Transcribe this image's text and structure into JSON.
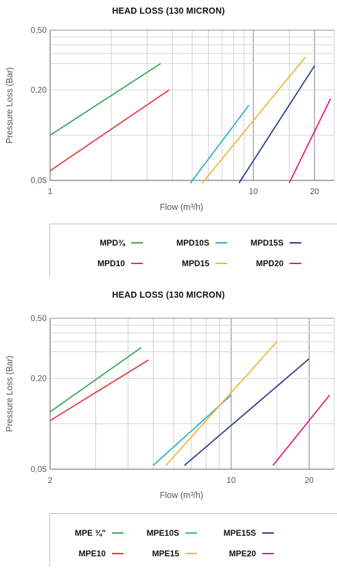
{
  "chart_data": [
    {
      "type": "line",
      "title": "HEAD LOSS (130 MICRON)",
      "xlabel": "Flow (m³/h)",
      "ylabel": "Pressure Loss (Bar)",
      "xscale": "log",
      "yscale": "log",
      "xlim": [
        1,
        25
      ],
      "ylim": [
        0.05,
        0.5
      ],
      "x_tick_labels": [
        "1",
        "10",
        "20"
      ],
      "x_ticks": [
        1,
        10,
        20
      ],
      "y_tick_labels": [
        "0,05",
        "0,20",
        "0,50"
      ],
      "y_ticks": [
        0.05,
        0.2,
        0.5
      ],
      "grid": true,
      "legend_position": "bottom",
      "series": [
        {
          "name": "MPD¾",
          "color": "#3aa55a",
          "x": [
            1.0,
            3.5
          ],
          "y": [
            0.1,
            0.3
          ]
        },
        {
          "name": "MPD10S",
          "color": "#2ab3c4",
          "x": [
            4.9,
            9.5
          ],
          "y": [
            0.048,
            0.158
          ]
        },
        {
          "name": "MPD15S",
          "color": "#2e3a8c",
          "x": [
            8.5,
            20.0
          ],
          "y": [
            0.048,
            0.29
          ]
        },
        {
          "name": "MPD10",
          "color": "#e5393b",
          "x": [
            1.0,
            3.85
          ],
          "y": [
            0.058,
            0.2
          ]
        },
        {
          "name": "MPD15",
          "color": "#f2b43a",
          "x": [
            5.6,
            18.0
          ],
          "y": [
            0.048,
            0.33
          ]
        },
        {
          "name": "MPD20",
          "color": "#e01a84",
          "x": [
            15.0,
            24.0
          ],
          "y": [
            0.048,
            0.175
          ]
        }
      ]
    },
    {
      "type": "line",
      "title": "HEAD LOSS (130 MICRON)",
      "xlabel": "Flow (m³/h)",
      "ylabel": "Pressure Loss (Bar)",
      "xscale": "log",
      "yscale": "log",
      "xlim": [
        2,
        25
      ],
      "ylim": [
        0.05,
        0.5
      ],
      "x_tick_labels": [
        "2",
        "10",
        "20"
      ],
      "x_ticks": [
        2,
        10,
        20
      ],
      "y_tick_labels": [
        "0,05",
        "0,20",
        "0,50"
      ],
      "y_ticks": [
        0.05,
        0.2,
        0.5
      ],
      "grid": true,
      "legend_position": "bottom",
      "series": [
        {
          "name": "MPE ¾\"",
          "color": "#3aa55a",
          "x": [
            2.0,
            4.5
          ],
          "y": [
            0.12,
            0.32
          ]
        },
        {
          "name": "MPE10S",
          "color": "#2ab3c4",
          "x": [
            5.0,
            10.0
          ],
          "y": [
            0.053,
            0.155
          ]
        },
        {
          "name": "MPE15S",
          "color": "#2e3a8c",
          "x": [
            6.6,
            20.0
          ],
          "y": [
            0.053,
            0.27
          ]
        },
        {
          "name": "MPE10",
          "color": "#e5393b",
          "x": [
            2.0,
            4.8
          ],
          "y": [
            0.105,
            0.265
          ]
        },
        {
          "name": "MPE15",
          "color": "#f2b43a",
          "x": [
            5.6,
            15.0
          ],
          "y": [
            0.053,
            0.35
          ]
        },
        {
          "name": "MPE20",
          "color": "#e01a84",
          "x": [
            14.5,
            24.0
          ],
          "y": [
            0.053,
            0.155
          ]
        }
      ]
    }
  ]
}
